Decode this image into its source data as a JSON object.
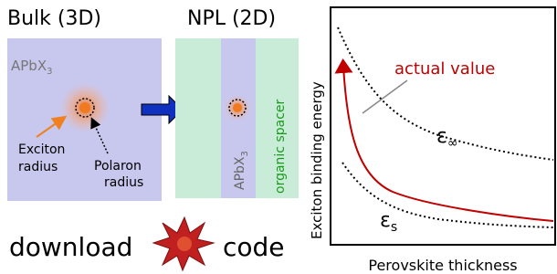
{
  "bulk": {
    "title": "Bulk (3D)",
    "material": {
      "text": "APbX",
      "sub": "3"
    },
    "exciton_label": [
      "Exciton",
      "radius"
    ],
    "polaron_label": [
      "Polaron",
      "radius"
    ]
  },
  "npl": {
    "title": "NPL (2D)",
    "material": {
      "text": "APbX",
      "sub": "3"
    },
    "spacer": "organic spacer"
  },
  "download": {
    "left": "download",
    "right": "code"
  },
  "plot": {
    "y_label": "Exciton binding energy",
    "x_label": "Perovskite thickness",
    "actual": "actual value",
    "eps_inf": {
      "text": "ε",
      "sub": "∞"
    },
    "eps_s": {
      "text": "ε",
      "sub": "s"
    }
  }
}
